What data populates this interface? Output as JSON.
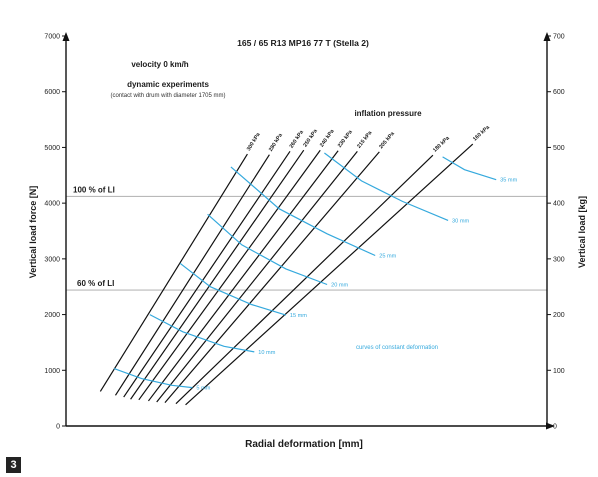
{
  "figure_number": "3",
  "chart_data": {
    "type": "line",
    "title": "165 / 65 R13 MP16 77 T (Stella 2)",
    "annotations": {
      "velocity": "velocity 0 km/h",
      "experiment_type": "dynamic experiments",
      "experiment_note": "(contact with drum with diameter 1705 mm)",
      "pressure_heading": "inflation pressure",
      "constant_deformation_label": "curves of constant deformation"
    },
    "xlabel": "Radial deformation [mm]",
    "ylabel": "Vertical load force [N]",
    "y2label": "Vertical load [kg]",
    "x_ticks_visible": false,
    "ylim": [
      0,
      7000
    ],
    "y_ticks": [
      0,
      1000,
      2000,
      3000,
      4000,
      5000,
      6000,
      7000
    ],
    "y2lim": [
      0,
      700
    ],
    "y2_ticks": [
      0,
      100,
      200,
      300,
      400,
      500,
      600,
      700
    ],
    "grid": false,
    "reference_lines": [
      {
        "label": "100 % of LI",
        "value": 4120
      },
      {
        "label": "60 % of LI",
        "value": 2440
      }
    ],
    "series": [
      {
        "name": "300 kPa",
        "points": [
          [
            2.5,
            620
          ],
          [
            13.2,
            4880
          ]
        ]
      },
      {
        "name": "280 kPa",
        "points": [
          [
            3.6,
            550
          ],
          [
            14.8,
            4870
          ]
        ]
      },
      {
        "name": "260 kPa",
        "points": [
          [
            4.2,
            520
          ],
          [
            16.3,
            4930
          ]
        ]
      },
      {
        "name": "250 kPa",
        "points": [
          [
            4.7,
            480
          ],
          [
            17.3,
            4950
          ]
        ]
      },
      {
        "name": "240 kPa",
        "points": [
          [
            5.3,
            470
          ],
          [
            18.5,
            4950
          ]
        ]
      },
      {
        "name": "230 kPa",
        "points": [
          [
            6.0,
            450
          ],
          [
            19.8,
            4940
          ]
        ]
      },
      {
        "name": "215 kPa",
        "points": [
          [
            6.6,
            430
          ],
          [
            21.2,
            4930
          ]
        ]
      },
      {
        "name": "205 kPa",
        "points": [
          [
            7.2,
            420
          ],
          [
            22.8,
            4920
          ]
        ]
      },
      {
        "name": "180 kPa",
        "points": [
          [
            8.0,
            400
          ],
          [
            26.7,
            4860
          ]
        ]
      },
      {
        "name": "160 kPa",
        "points": [
          [
            8.7,
            380
          ],
          [
            29.6,
            5060
          ]
        ]
      }
    ],
    "constant_deformation_curves": [
      {
        "label": "5 mm",
        "points": [
          [
            3.5,
            1030
          ],
          [
            5.5,
            850
          ],
          [
            7.7,
            730
          ],
          [
            9.2,
            690
          ]
        ]
      },
      {
        "label": "10 mm",
        "points": [
          [
            6.1,
            2000
          ],
          [
            8.5,
            1690
          ],
          [
            11.5,
            1430
          ],
          [
            13.7,
            1330
          ]
        ]
      },
      {
        "label": "15 mm",
        "points": [
          [
            8.3,
            2920
          ],
          [
            10.5,
            2500
          ],
          [
            13.5,
            2180
          ],
          [
            16.0,
            1990
          ]
        ]
      },
      {
        "label": "20 mm",
        "points": [
          [
            10.3,
            3800
          ],
          [
            12.8,
            3250
          ],
          [
            16.0,
            2820
          ],
          [
            19.0,
            2540
          ]
        ]
      },
      {
        "label": "25 mm",
        "points": [
          [
            12.0,
            4650
          ],
          [
            15.5,
            3900
          ],
          [
            19.0,
            3450
          ],
          [
            22.5,
            3060
          ]
        ]
      },
      {
        "label": "30 mm",
        "points": [
          [
            18.8,
            4900
          ],
          [
            21.5,
            4400
          ],
          [
            24.5,
            4030
          ],
          [
            27.8,
            3690
          ]
        ]
      },
      {
        "label": "35 mm",
        "points": [
          [
            27.4,
            4830
          ],
          [
            29.0,
            4600
          ],
          [
            31.3,
            4420
          ]
        ]
      }
    ]
  },
  "colors": {
    "series_line": "#111111",
    "constant_deformation": "#35a9dd",
    "reference_line": "#b9b9b9",
    "axis": "#111111",
    "badge": "#232323"
  }
}
